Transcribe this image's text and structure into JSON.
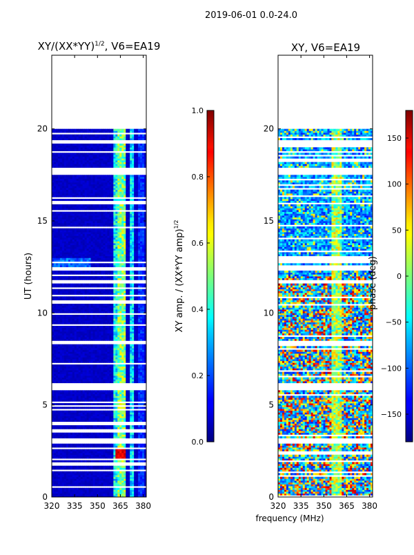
{
  "suptitle": "2019-06-01 0.0-24.0",
  "shared_xlabel": "frequency (MHz)",
  "chart_data": [
    {
      "type": "heatmap",
      "title": "XY/(XX*YY)",
      "title_sup": "1/2",
      "title_suffix": ", V6=EA19",
      "ylabel": "UT (hours)",
      "xlim": [
        320,
        382
      ],
      "ylim": [
        0,
        24
      ],
      "xticks": [
        320,
        335,
        350,
        365,
        380
      ],
      "yticks": [
        0,
        5,
        10,
        15,
        20
      ],
      "data_range_hours": [
        0,
        20
      ],
      "colorbar": {
        "label": "XY amp. / (XX*YY amp)",
        "label_sup": "1/2",
        "min": 0.0,
        "max": 1.0,
        "ticks": [
          "0.0",
          "0.2",
          "0.4",
          "0.6",
          "0.8",
          "1.0"
        ]
      },
      "features": {
        "background": "low amplitude (~0.05) across most of band",
        "bright_channels_mhz": [
          362,
          366,
          372
        ],
        "peak_region": {
          "freq_mhz": [
            362,
            369
          ],
          "ut_hours": [
            2.0,
            2.8
          ],
          "value": 0.85
        }
      }
    },
    {
      "type": "heatmap",
      "title": "XY, V6=EA19",
      "ylabel": "",
      "xlim": [
        320,
        382
      ],
      "ylim": [
        0,
        24
      ],
      "xticks": [
        320,
        335,
        350,
        365,
        380
      ],
      "yticks": [
        0,
        5,
        10,
        15,
        20
      ],
      "data_range_hours": [
        0,
        20
      ],
      "colorbar": {
        "label": "phase (deg)",
        "min": -180,
        "max": 180,
        "ticks": [
          "−150",
          "−100",
          "−50",
          "0",
          "50",
          "100",
          "150"
        ]
      },
      "features": {
        "description": "noisy phase, mixed values spanning -180 to 180 deg"
      }
    }
  ],
  "colors": {
    "jet_dark_blue": "#00008f",
    "jet_red": "#ff0000",
    "gap": "#ffffff"
  }
}
